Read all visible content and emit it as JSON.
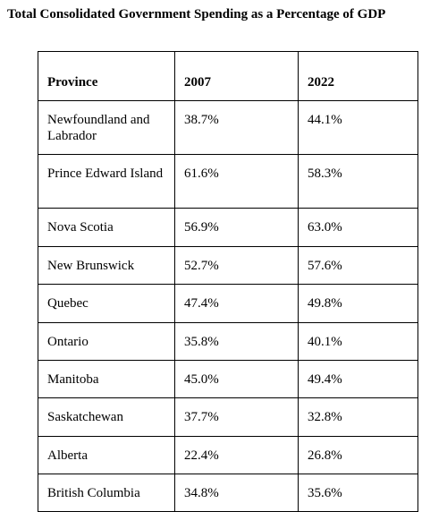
{
  "header": {
    "title": "Total Consolidated Government Spending as a Percentage of GDP"
  },
  "table": {
    "columns": [
      "Province",
      "2007",
      "2022"
    ],
    "rows": [
      [
        "Newfoundland and Labrador",
        "38.7%",
        "44.1%"
      ],
      [
        "Prince Edward Island",
        "61.6%",
        "58.3%"
      ],
      [
        "Nova Scotia",
        "56.9%",
        "63.0%"
      ],
      [
        "New Brunswick",
        "52.7%",
        "57.6%"
      ],
      [
        "Quebec",
        "47.4%",
        "49.8%"
      ],
      [
        "Ontario",
        "35.8%",
        "40.1%"
      ],
      [
        "Manitoba",
        "45.0%",
        "49.4%"
      ],
      [
        "Saskatchewan",
        "37.7%",
        "32.8%"
      ],
      [
        "Alberta",
        "22.4%",
        "26.8%"
      ],
      [
        "British Columbia",
        "34.8%",
        "35.6%"
      ]
    ]
  }
}
